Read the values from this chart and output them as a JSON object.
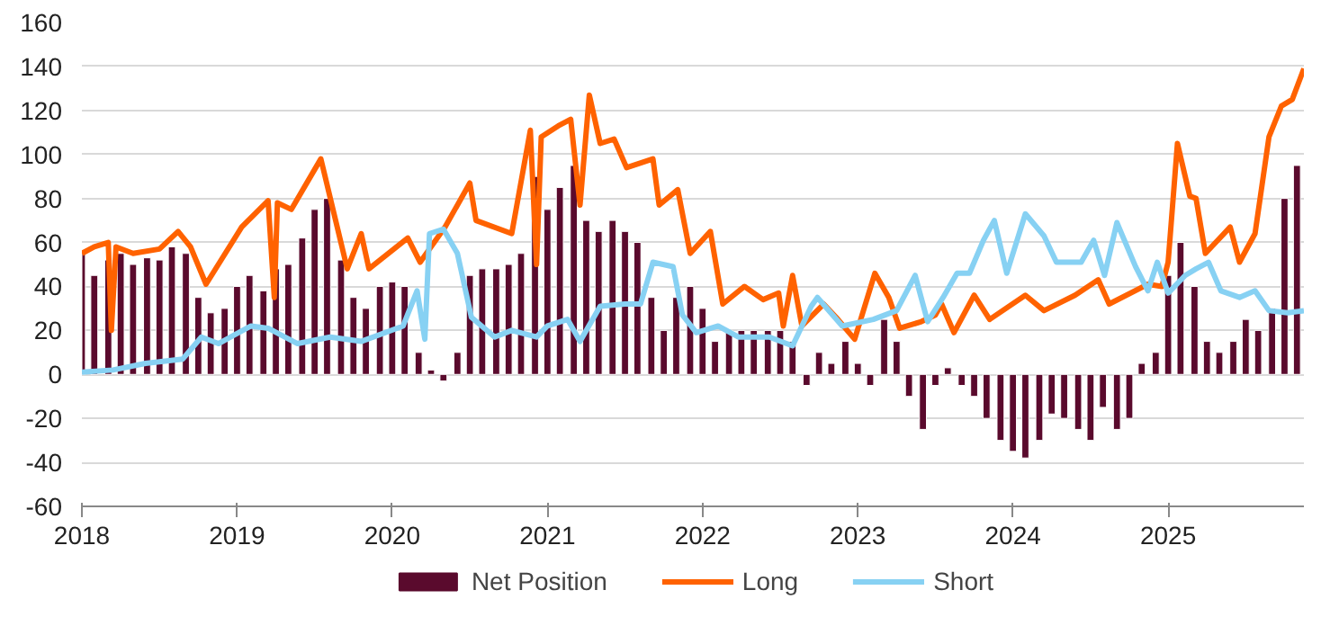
{
  "chart_data": {
    "type": "line",
    "xlim": [
      2018,
      2025.875
    ],
    "xticks": [
      2018,
      2019,
      2020,
      2021,
      2022,
      2023,
      2024,
      2025
    ],
    "ylim": [
      -60,
      160
    ],
    "yticks": [
      -60,
      -40,
      -20,
      0,
      20,
      40,
      60,
      80,
      100,
      120,
      140,
      160
    ],
    "grid": "y",
    "legend": "bottom",
    "marker": "none",
    "line_style": "solid",
    "series": [
      {
        "name": "Net Position",
        "type": "bar",
        "color": "#5a0a2d",
        "x": [
          2018.0,
          2018.08,
          2018.17,
          2018.25,
          2018.33,
          2018.42,
          2018.5,
          2018.58,
          2018.67,
          2018.75,
          2018.83,
          2018.92,
          2019.0,
          2019.08,
          2019.17,
          2019.25,
          2019.33,
          2019.42,
          2019.5,
          2019.58,
          2019.67,
          2019.75,
          2019.83,
          2019.92,
          2020.0,
          2020.08,
          2020.17,
          2020.25,
          2020.33,
          2020.42,
          2020.5,
          2020.58,
          2020.67,
          2020.75,
          2020.83,
          2020.92,
          2021.0,
          2021.08,
          2021.17,
          2021.25,
          2021.33,
          2021.42,
          2021.5,
          2021.58,
          2021.67,
          2021.75,
          2021.83,
          2021.92,
          2022.0,
          2022.08,
          2022.17,
          2022.25,
          2022.33,
          2022.42,
          2022.5,
          2022.58,
          2022.67,
          2022.75,
          2022.83,
          2022.92,
          2023.0,
          2023.08,
          2023.17,
          2023.25,
          2023.33,
          2023.42,
          2023.5,
          2023.58,
          2023.67,
          2023.75,
          2023.83,
          2023.92,
          2024.0,
          2024.08,
          2024.17,
          2024.25,
          2024.33,
          2024.42,
          2024.5,
          2024.58,
          2024.67,
          2024.75,
          2024.83,
          2024.92,
          2025.0,
          2025.08,
          2025.17,
          2025.25,
          2025.33,
          2025.42,
          2025.5,
          2025.58,
          2025.67,
          2025.75,
          2025.83
        ],
        "values": [
          55,
          45,
          52,
          55,
          50,
          53,
          52,
          58,
          55,
          35,
          28,
          30,
          40,
          45,
          38,
          48,
          50,
          62,
          75,
          80,
          52,
          35,
          30,
          40,
          42,
          40,
          10,
          2,
          -3,
          10,
          45,
          48,
          48,
          50,
          55,
          90,
          75,
          85,
          95,
          70,
          65,
          70,
          65,
          60,
          35,
          20,
          35,
          40,
          30,
          15,
          20,
          20,
          20,
          20,
          20,
          15,
          -5,
          10,
          5,
          15,
          5,
          -5,
          25,
          15,
          -10,
          -25,
          -5,
          3,
          -5,
          -10,
          -20,
          -30,
          -35,
          -38,
          -30,
          -18,
          -20,
          -25,
          -30,
          -15,
          -25,
          -20,
          5,
          10,
          45,
          60,
          40,
          15,
          10,
          15,
          25,
          20,
          30,
          80,
          95
        ]
      },
      {
        "name": "Long",
        "color": "#ff6200",
        "x": [
          2018.0,
          2018.08,
          2018.17,
          2018.19,
          2018.22,
          2018.33,
          2018.5,
          2018.62,
          2018.7,
          2018.8,
          2019.03,
          2019.2,
          2019.24,
          2019.26,
          2019.35,
          2019.54,
          2019.71,
          2019.8,
          2019.85,
          2020.1,
          2020.18,
          2020.34,
          2020.5,
          2020.54,
          2020.77,
          2020.89,
          2020.93,
          2020.96,
          2021.07,
          2021.15,
          2021.21,
          2021.27,
          2021.34,
          2021.43,
          2021.51,
          2021.68,
          2021.72,
          2021.84,
          2021.92,
          2022.05,
          2022.13,
          2022.27,
          2022.39,
          2022.49,
          2022.52,
          2022.58,
          2022.64,
          2022.78,
          2022.86,
          2022.98,
          2023.11,
          2023.2,
          2023.27,
          2023.41,
          2023.5,
          2023.54,
          2023.62,
          2023.75,
          2023.85,
          2024.08,
          2024.2,
          2024.4,
          2024.55,
          2024.62,
          2024.87,
          2024.96,
          2025.0,
          2025.06,
          2025.14,
          2025.18,
          2025.24,
          2025.4,
          2025.46,
          2025.56,
          2025.65,
          2025.73,
          2025.8,
          2025.875
        ],
        "values": [
          55,
          58,
          60,
          20,
          58,
          55,
          57,
          65,
          58,
          41,
          67,
          79,
          35,
          78,
          75,
          98,
          48,
          64,
          48,
          62,
          51,
          67,
          87,
          70,
          64,
          111,
          50,
          108,
          113,
          116,
          77,
          127,
          105,
          107,
          94,
          98,
          77,
          84,
          55,
          65,
          32,
          40,
          34,
          37,
          22,
          45,
          22,
          32,
          26,
          16,
          46,
          35,
          21,
          24,
          27,
          32,
          19,
          36,
          25,
          36,
          29,
          36,
          43,
          32,
          41,
          40,
          51,
          105,
          81,
          80,
          55,
          67,
          51,
          64,
          108,
          122,
          125,
          139
        ]
      },
      {
        "name": "Short",
        "color": "#87d1f3",
        "x": [
          2018.0,
          2018.2,
          2018.41,
          2018.65,
          2018.77,
          2018.88,
          2019.09,
          2019.2,
          2019.39,
          2019.6,
          2019.8,
          2020.07,
          2020.16,
          2020.21,
          2020.24,
          2020.33,
          2020.42,
          2020.51,
          2020.66,
          2020.77,
          2020.93,
          2021.0,
          2021.13,
          2021.21,
          2021.34,
          2021.5,
          2021.6,
          2021.68,
          2021.81,
          2021.87,
          2021.96,
          2022.1,
          2022.23,
          2022.43,
          2022.58,
          2022.7,
          2022.74,
          2022.9,
          2023.1,
          2023.25,
          2023.37,
          2023.45,
          2023.55,
          2023.64,
          2023.72,
          2023.81,
          2023.88,
          2023.96,
          2024.08,
          2024.2,
          2024.28,
          2024.44,
          2024.52,
          2024.59,
          2024.67,
          2024.79,
          2024.87,
          2024.93,
          2025.0,
          2025.11,
          2025.18,
          2025.26,
          2025.34,
          2025.46,
          2025.56,
          2025.65,
          2025.77,
          2025.875
        ],
        "values": [
          1,
          2,
          5,
          7,
          17,
          14,
          22,
          21,
          14,
          17,
          15,
          22,
          38,
          16,
          64,
          66,
          55,
          26,
          17,
          20,
          17,
          22,
          25,
          15,
          31,
          32,
          32,
          51,
          49,
          27,
          19,
          22,
          17,
          17,
          13,
          31,
          35,
          22,
          25,
          29,
          45,
          24,
          35,
          46,
          46,
          61,
          70,
          46,
          73,
          63,
          51,
          51,
          61,
          45,
          69,
          49,
          38,
          51,
          37,
          45,
          48,
          51,
          38,
          35,
          38,
          29,
          28,
          29
        ]
      }
    ]
  }
}
